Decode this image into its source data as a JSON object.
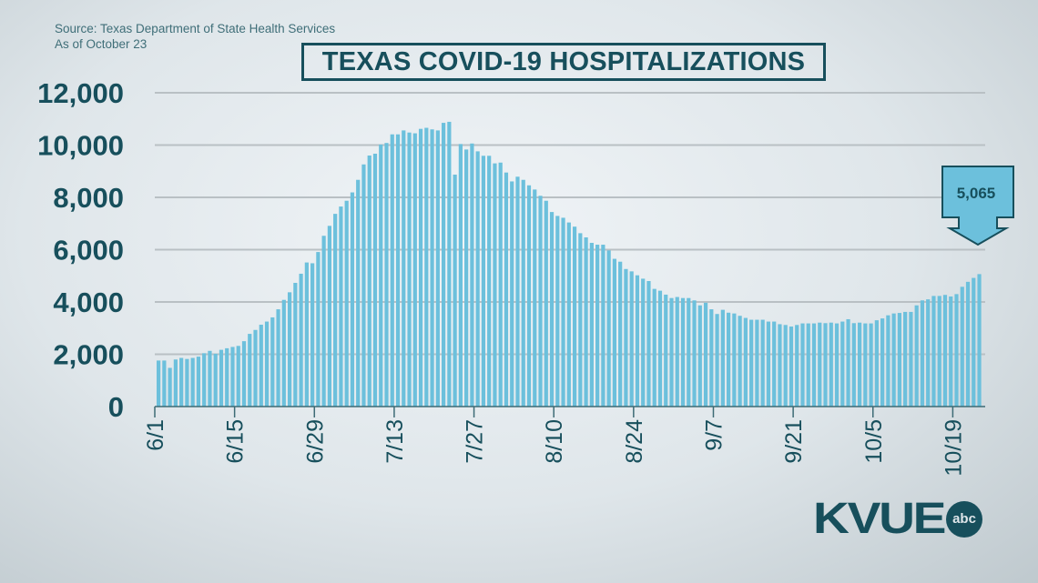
{
  "source": "Source: Texas Department of State Health Services",
  "as_of": "As of October 23",
  "logo": {
    "text": "KVUE",
    "network": "abc"
  },
  "colors": {
    "bar": "#6cc0dc",
    "text": "#174f5c",
    "grid": "#b9c0c4",
    "callout_fill": "#6cc0dc"
  },
  "chart_data": {
    "type": "bar",
    "title": "TEXAS COVID-19 HOSPITALIZATIONS",
    "xlabel": "",
    "ylabel": "",
    "ylim": [
      0,
      12000
    ],
    "yticks": [
      "0",
      "2,000",
      "4,000",
      "6,000",
      "8,000",
      "10,000",
      "12,000"
    ],
    "ytick_values": [
      0,
      2000,
      4000,
      6000,
      8000,
      10000,
      12000
    ],
    "grid": true,
    "start_date": "6/1",
    "end_date": "10/23",
    "xtick_labels": [
      "6/1",
      "6/15",
      "6/29",
      "7/13",
      "7/27",
      "8/10",
      "8/24",
      "9/7",
      "9/21",
      "10/5",
      "10/19"
    ],
    "xtick_day_index": [
      0,
      14,
      28,
      42,
      56,
      70,
      84,
      98,
      112,
      126,
      140
    ],
    "values": [
      1760,
      1760,
      1480,
      1800,
      1860,
      1820,
      1860,
      1910,
      2040,
      2130,
      2020,
      2170,
      2230,
      2280,
      2320,
      2500,
      2780,
      2930,
      3130,
      3250,
      3410,
      3720,
      4080,
      4370,
      4730,
      5080,
      5510,
      5480,
      5910,
      6530,
      6910,
      7370,
      7650,
      7870,
      8190,
      8670,
      9260,
      9600,
      9670,
      10020,
      10080,
      10410,
      10410,
      10560,
      10480,
      10450,
      10620,
      10660,
      10600,
      10560,
      10850,
      10890,
      8870,
      10040,
      9830,
      10060,
      9760,
      9590,
      9590,
      9300,
      9330,
      8950,
      8610,
      8790,
      8670,
      8460,
      8300,
      8060,
      7870,
      7440,
      7290,
      7220,
      7040,
      6880,
      6630,
      6470,
      6260,
      6190,
      6190,
      5970,
      5650,
      5540,
      5260,
      5170,
      5020,
      4890,
      4800,
      4500,
      4430,
      4280,
      4150,
      4190,
      4150,
      4150,
      4060,
      3870,
      3970,
      3720,
      3540,
      3700,
      3590,
      3560,
      3470,
      3390,
      3320,
      3320,
      3320,
      3250,
      3250,
      3150,
      3120,
      3060,
      3120,
      3180,
      3180,
      3180,
      3210,
      3190,
      3210,
      3180,
      3250,
      3340,
      3190,
      3210,
      3180,
      3180,
      3300,
      3370,
      3490,
      3560,
      3580,
      3620,
      3620,
      3870,
      4060,
      4100,
      4230,
      4230,
      4270,
      4210,
      4300,
      4580,
      4770,
      4920,
      5065
    ],
    "annotation": {
      "text": "5,065",
      "date": "10/23",
      "value": 5065
    }
  }
}
